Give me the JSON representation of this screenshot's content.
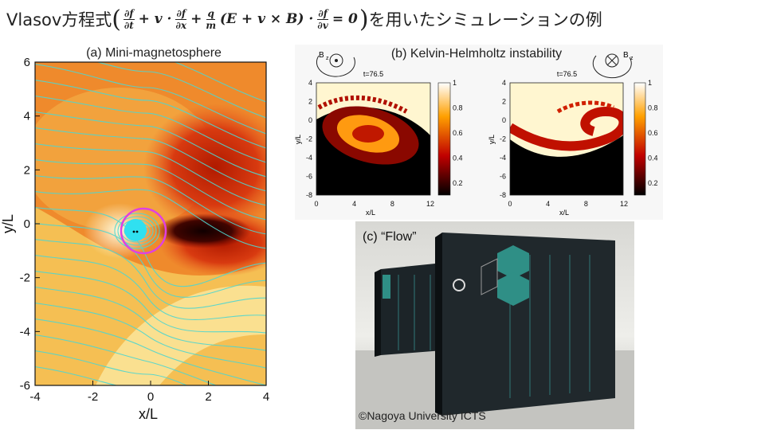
{
  "title": {
    "prefix": "Vlasov方程式",
    "suffix": "を用いたシミュレーションの例",
    "equation": [
      {
        "text": "("
      },
      {
        "num": "∂f",
        "den": "∂t"
      },
      {
        "text": "+ v ·"
      },
      {
        "num": "∂f",
        "den": "∂x"
      },
      {
        "text": "+"
      },
      {
        "num": "q",
        "den": "m"
      },
      {
        "text": "(E + v × B) ·"
      },
      {
        "num": "∂f",
        "den": "∂v"
      },
      {
        "text": "= 0"
      },
      {
        "text": ")"
      }
    ]
  },
  "panel_a": {
    "label": "(a) Mini-magnetosphere",
    "xlabel": "x/L",
    "ylabel": "y/L",
    "xticks": [
      "-4",
      "-2",
      "0",
      "2",
      "4"
    ],
    "yticks": [
      "6",
      "4",
      "2",
      "0",
      "-2",
      "-4",
      "-6"
    ]
  },
  "panel_b": {
    "label": "(b) Kelvin-Helmholtz instability",
    "field": "B",
    "field_sub": "z",
    "plots": [
      {
        "time": "t=76.5",
        "xlabel": "x/L",
        "ylabel": "y/L",
        "xticks": [
          "0",
          "4",
          "8",
          "12"
        ],
        "yticks": [
          "4",
          "2",
          "0",
          "-2",
          "-4",
          "-6",
          "-8"
        ],
        "cbar_ticks": [
          "1",
          "0.8",
          "0.6",
          "0.4",
          "0.2"
        ]
      },
      {
        "time": "t=76.5",
        "xlabel": "x/L",
        "ylabel": "y/L",
        "xticks": [
          "0",
          "4",
          "8",
          "12"
        ],
        "yticks": [
          "4",
          "2",
          "0",
          "-2",
          "-4",
          "-6",
          "-8"
        ],
        "cbar_ticks": [
          "1",
          "0.8",
          "0.6",
          "0.4",
          "0.2"
        ]
      }
    ]
  },
  "panel_c": {
    "label": "(c) “Flow”",
    "credit": "©Nagoya University ICTS"
  }
}
